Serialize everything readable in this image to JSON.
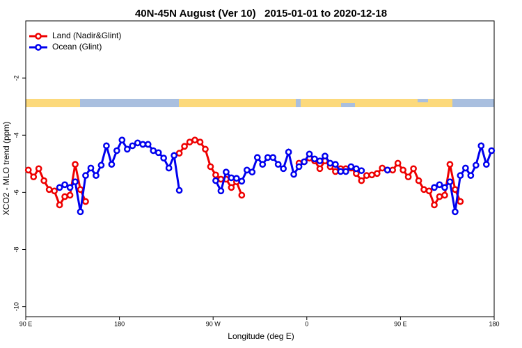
{
  "chart_data": {
    "type": "line",
    "title": "40N-45N August (Ver 10)   2015-01-01 to 2020-12-18",
    "xlabel": "Longitude (deg E)",
    "ylabel": "XCO2 - MLO trend (ppm)",
    "xlim": [
      90,
      540
    ],
    "xticks": [
      {
        "value": 90,
        "label": "90 E"
      },
      {
        "value": 180,
        "label": "180"
      },
      {
        "value": 270,
        "label": "90 W"
      },
      {
        "value": 360,
        "label": "0"
      },
      {
        "value": 450,
        "label": "90 E"
      },
      {
        "value": 540,
        "label": "180"
      }
    ],
    "ylim": [
      -10.35,
      0
    ],
    "yticks": [
      -2,
      -4,
      -6,
      -8,
      -10
    ],
    "legend": "top-left",
    "series": [
      {
        "name": "Land (Nadir&Glint)",
        "color": "#ee0000",
        "x": [
          92.5,
          97.5,
          102.5,
          107.5,
          112.5,
          117.5,
          122.5,
          127.5,
          132.5,
          137.5,
          142.5,
          147.5,
          null,
          237.5,
          242.5,
          247.5,
          252.5,
          257.5,
          262.5,
          267.5,
          272.5,
          277.5,
          282.5,
          287.5,
          292.5,
          297.5,
          null,
          352.5,
          357.5,
          362.5,
          367.5,
          372.5,
          377.5,
          382.5,
          387.5,
          392.5,
          397.5,
          402.5,
          407.5,
          412.5,
          417.5,
          422.5,
          427.5,
          432.5,
          437.5,
          442.5,
          447.5,
          452.5,
          457.5,
          462.5,
          467.5,
          472.5,
          477.5,
          482.5,
          487.5,
          492.5,
          497.5,
          502.5,
          507.5
        ],
        "values": [
          -5.22,
          -5.46,
          -5.17,
          -5.59,
          -5.9,
          -5.95,
          -6.44,
          -6.15,
          -6.1,
          -5.02,
          -5.9,
          -6.32,
          null,
          -4.63,
          -4.39,
          -4.24,
          -4.17,
          -4.24,
          -4.49,
          -5.1,
          -5.39,
          -5.54,
          -5.54,
          -5.83,
          -5.63,
          -6.1,
          null,
          -4.98,
          -4.93,
          -4.8,
          -4.9,
          -5.17,
          -4.9,
          -5.1,
          -5.27,
          -5.17,
          -5.17,
          -5.15,
          -5.34,
          -5.59,
          -5.41,
          -5.39,
          -5.34,
          -5.15,
          -5.22,
          -5.22,
          -4.98,
          -5.22,
          -5.46,
          -5.17,
          -5.59,
          -5.9,
          -5.95,
          -6.44,
          -6.15,
          -6.1,
          -5.02,
          -5.9,
          -6.32
        ]
      },
      {
        "name": "Ocean (Glint)",
        "color": "#0000ee",
        "x": [
          122.5,
          127.5,
          132.5,
          137.5,
          142.5,
          147.5,
          152.5,
          157.5,
          162.5,
          167.5,
          172.5,
          177.5,
          182.5,
          187.5,
          192.5,
          197.5,
          202.5,
          207.5,
          212.5,
          217.5,
          222.5,
          227.5,
          232.5,
          237.5,
          null,
          272.5,
          277.5,
          282.5,
          287.5,
          292.5,
          297.5,
          302.5,
          307.5,
          312.5,
          317.5,
          322.5,
          327.5,
          332.5,
          337.5,
          342.5,
          347.5,
          352.5,
          357.5,
          362.5,
          367.5,
          372.5,
          377.5,
          382.5,
          387.5,
          392.5,
          397.5,
          402.5,
          407.5,
          412.5,
          null,
          437.5,
          null,
          482.5,
          487.5,
          492.5,
          497.5,
          502.5,
          507.5,
          512.5,
          517.5,
          522.5,
          527.5,
          532.5,
          537.5
        ],
        "values": [
          -5.83,
          -5.73,
          -5.83,
          -5.63,
          -6.68,
          -5.41,
          -5.15,
          -5.41,
          -5.05,
          -4.37,
          -5.02,
          -4.54,
          -4.17,
          -4.49,
          -4.37,
          -4.27,
          -4.32,
          -4.32,
          -4.54,
          -4.61,
          -4.8,
          -5.15,
          -4.71,
          -5.93,
          null,
          -5.59,
          -5.95,
          -5.29,
          -5.49,
          -5.51,
          -5.61,
          -5.22,
          -5.29,
          -4.78,
          -5.02,
          -4.78,
          -4.78,
          -5.02,
          -5.17,
          -4.59,
          -5.37,
          -5.1,
          -4.93,
          -4.66,
          -4.83,
          -4.9,
          -4.73,
          -4.98,
          -5.02,
          -5.27,
          -5.27,
          -5.1,
          -5.17,
          -5.24,
          null,
          -5.22,
          null,
          -5.83,
          -5.73,
          -5.83,
          -5.63,
          -6.68,
          -5.41,
          -5.15,
          -5.41,
          -5.05,
          -4.37,
          -5.02,
          -4.54
        ]
      }
    ]
  }
}
